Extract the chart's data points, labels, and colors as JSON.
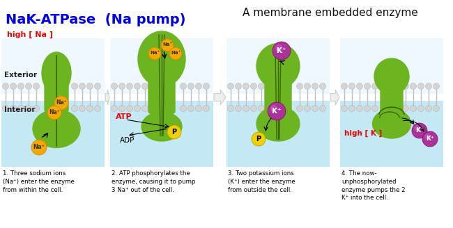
{
  "title_left": "NaK-ATPase  (Na pump)",
  "title_right": "A membrane embedded enzyme",
  "title_left_color": "#0000EE",
  "title_right_color": "#111111",
  "bg_color": "#FFFFFF",
  "panel_bg_top": "#FFFFFF",
  "panel_bg_bottom": "#C5E8F5",
  "membrane_head_color": "#D0D0D0",
  "membrane_tail_color": "#B0B0B0",
  "protein_color": "#6DB520",
  "protein_dark": "#3A6800",
  "protein_light": "#8ED040",
  "na_ion_color": "#F5A800",
  "na_ion_dark": "#D08000",
  "k_ion_color": "#AA3399",
  "k_ion_light": "#CC55BB",
  "p_color": "#F0D000",
  "atp_color": "#EE0000",
  "arrow_fill": "#EEEEEE",
  "arrow_edge": "#CCCCCC",
  "high_na_color": "#EE0000",
  "high_k_color": "#EE0000",
  "label1": "1. Three sodium ions\n(Na⁺) enter the enzyme\nfrom within the cell.",
  "label2": "2. ATP phosphorylates the\nenzyme, causing it to pump\n3 Na⁺ out of the cell.",
  "label3": "3. Two potassium ions\n(K⁺) enter the enzyme\nfrom outside the cell.",
  "label4": "4. The now-\nunphosphorylated\nenzyme pumps the 2\nK⁺ into the cell.",
  "exterior_label": "Exterior",
  "interior_label": "Interior",
  "high_na_label": "high [ Na ]",
  "high_k_label": "high [ K ]"
}
